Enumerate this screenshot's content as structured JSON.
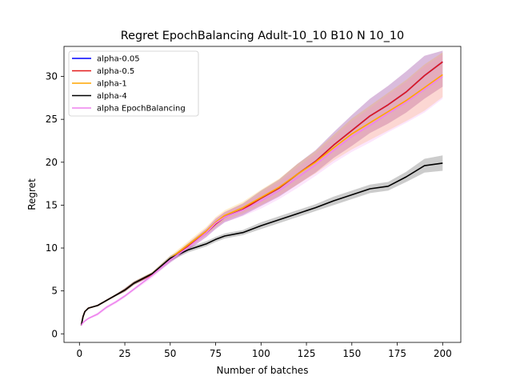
{
  "chart_data": {
    "type": "line",
    "title": "Regret EpochBalancing Adult-10_10 B10 N 10_10",
    "xlabel": "Number of batches",
    "ylabel": "Regret",
    "xlim": [
      -8.5,
      210
    ],
    "ylim": [
      -1.0,
      33.5
    ],
    "xticks": [
      0,
      25,
      50,
      75,
      100,
      125,
      150,
      175,
      200
    ],
    "yticks": [
      0,
      5,
      10,
      15,
      20,
      25,
      30
    ],
    "legend_position": "top-left",
    "grid": false,
    "series": [
      {
        "name": "alpha-0.05",
        "color": "#0000ff",
        "band_opacity": 0.15,
        "x": [
          1,
          2,
          3,
          5,
          10,
          15,
          20,
          25,
          30,
          40,
          50,
          60,
          70,
          75,
          80,
          90,
          100,
          110,
          120,
          130,
          140,
          150,
          160,
          170,
          180,
          190,
          200
        ],
        "y": [
          1.0,
          2.0,
          2.6,
          3.0,
          3.3,
          3.9,
          4.5,
          5.1,
          5.9,
          6.9,
          8.6,
          10.2,
          11.8,
          12.8,
          13.6,
          14.5,
          15.8,
          17.0,
          18.6,
          20.1,
          22.0,
          23.7,
          25.4,
          26.7,
          28.2,
          30.1,
          31.7
        ],
        "lower": [
          1.0,
          2.0,
          2.6,
          3.0,
          3.2,
          3.8,
          4.4,
          4.9,
          5.7,
          6.7,
          8.3,
          9.8,
          11.3,
          12.2,
          13.0,
          13.8,
          14.9,
          16.0,
          17.4,
          18.8,
          20.5,
          21.9,
          23.4,
          24.5,
          25.8,
          27.4,
          28.8
        ],
        "upper": [
          1.0,
          2.0,
          2.6,
          3.0,
          3.4,
          4.0,
          4.6,
          5.3,
          6.1,
          7.1,
          8.9,
          10.6,
          12.3,
          13.4,
          14.2,
          15.2,
          16.7,
          18.0,
          19.8,
          21.4,
          23.5,
          25.5,
          27.4,
          28.9,
          30.6,
          32.4,
          33.0
        ]
      },
      {
        "name": "alpha-0.5",
        "color": "#e31a1c",
        "band_opacity": 0.15,
        "x": [
          1,
          2,
          3,
          5,
          10,
          15,
          20,
          25,
          30,
          40,
          50,
          60,
          70,
          75,
          80,
          90,
          100,
          110,
          120,
          130,
          140,
          150,
          160,
          170,
          180,
          190,
          200
        ],
        "y": [
          1.0,
          2.0,
          2.6,
          3.0,
          3.3,
          3.9,
          4.5,
          5.1,
          5.9,
          6.9,
          8.6,
          10.2,
          11.8,
          12.8,
          13.6,
          14.5,
          15.8,
          17.0,
          18.6,
          20.1,
          22.0,
          23.7,
          25.4,
          26.7,
          28.2,
          30.1,
          31.7
        ],
        "lower": [
          1.0,
          2.0,
          2.6,
          3.0,
          3.2,
          3.8,
          4.4,
          4.9,
          5.7,
          6.7,
          8.3,
          9.8,
          11.3,
          12.2,
          13.0,
          13.8,
          14.9,
          16.0,
          17.4,
          18.8,
          20.5,
          21.9,
          23.4,
          24.5,
          25.8,
          27.4,
          28.8
        ],
        "upper": [
          1.0,
          2.0,
          2.6,
          3.0,
          3.4,
          4.0,
          4.6,
          5.3,
          6.1,
          7.1,
          8.9,
          10.6,
          12.3,
          13.4,
          14.2,
          15.2,
          16.7,
          18.0,
          19.8,
          21.4,
          23.5,
          25.5,
          27.4,
          28.9,
          30.6,
          32.4,
          33.0
        ]
      },
      {
        "name": "alpha-1",
        "color": "#ffa500",
        "band_opacity": 0.2,
        "x": [
          1,
          2,
          3,
          5,
          10,
          15,
          20,
          25,
          30,
          40,
          50,
          60,
          70,
          75,
          80,
          90,
          100,
          110,
          120,
          130,
          140,
          150,
          160,
          170,
          180,
          190,
          200
        ],
        "y": [
          1.0,
          2.0,
          2.6,
          3.0,
          3.3,
          3.9,
          4.5,
          5.1,
          5.9,
          7.0,
          8.8,
          10.4,
          12.0,
          13.0,
          13.8,
          14.7,
          15.9,
          17.1,
          18.6,
          20.0,
          21.7,
          23.3,
          24.6,
          25.9,
          27.2,
          28.7,
          30.2
        ],
        "lower": [
          1.0,
          2.0,
          2.6,
          3.0,
          3.2,
          3.8,
          4.4,
          4.9,
          5.7,
          6.8,
          8.5,
          10.0,
          11.5,
          12.4,
          13.2,
          14.0,
          15.0,
          16.1,
          17.4,
          18.7,
          20.2,
          21.5,
          22.6,
          23.7,
          24.8,
          26.0,
          27.6
        ],
        "upper": [
          1.0,
          2.0,
          2.6,
          3.0,
          3.4,
          4.0,
          4.6,
          5.3,
          6.1,
          7.2,
          9.1,
          10.8,
          12.5,
          13.6,
          14.4,
          15.4,
          16.8,
          18.1,
          19.8,
          21.3,
          23.2,
          25.1,
          26.6,
          28.1,
          29.6,
          31.4,
          32.8
        ]
      },
      {
        "name": "alpha-4",
        "color": "#000000",
        "band_opacity": 0.2,
        "x": [
          1,
          2,
          3,
          5,
          10,
          15,
          20,
          25,
          30,
          40,
          50,
          60,
          70,
          75,
          80,
          90,
          100,
          110,
          120,
          130,
          140,
          150,
          160,
          170,
          180,
          190,
          200
        ],
        "y": [
          1.0,
          2.0,
          2.6,
          3.0,
          3.3,
          3.9,
          4.5,
          5.1,
          5.9,
          7.0,
          8.8,
          9.8,
          10.5,
          11.0,
          11.4,
          11.8,
          12.6,
          13.3,
          14.0,
          14.7,
          15.5,
          16.2,
          16.9,
          17.2,
          18.3,
          19.6,
          19.9
        ],
        "lower": [
          1.0,
          2.0,
          2.6,
          3.0,
          3.2,
          3.8,
          4.4,
          4.9,
          5.7,
          6.8,
          8.5,
          9.5,
          10.2,
          10.7,
          11.1,
          11.5,
          12.2,
          12.9,
          13.6,
          14.3,
          15.0,
          15.7,
          16.4,
          16.7,
          17.7,
          18.8,
          19.0
        ],
        "upper": [
          1.0,
          2.0,
          2.6,
          3.0,
          3.4,
          4.0,
          4.6,
          5.3,
          6.1,
          7.2,
          9.1,
          10.1,
          10.8,
          11.3,
          11.7,
          12.1,
          13.0,
          13.7,
          14.4,
          15.1,
          16.0,
          16.7,
          17.4,
          17.7,
          18.9,
          20.4,
          20.8
        ]
      },
      {
        "name": "alpha EpochBalancing",
        "color": "#ee82ee",
        "band_opacity": 0.2,
        "x": [
          1,
          2,
          3,
          5,
          10,
          15,
          20,
          25,
          30,
          40,
          50,
          60,
          70,
          75,
          80,
          90,
          100,
          110,
          120,
          130,
          140,
          150,
          160,
          170,
          180,
          190,
          200
        ],
        "y": [
          1.0,
          1.3,
          1.5,
          1.8,
          2.3,
          3.1,
          3.7,
          4.4,
          5.2,
          6.8,
          8.6,
          10.1,
          11.8,
          12.9,
          13.6,
          14.4,
          15.5,
          16.7,
          18.2,
          19.7,
          21.4,
          23.0,
          24.3,
          25.7,
          27.0,
          28.5,
          30.0
        ],
        "lower": [
          1.0,
          1.2,
          1.4,
          1.7,
          2.1,
          2.9,
          3.5,
          4.2,
          5.0,
          6.5,
          8.3,
          9.7,
          11.3,
          12.3,
          13.0,
          13.7,
          14.6,
          15.7,
          17.0,
          18.4,
          19.9,
          21.2,
          22.3,
          23.5,
          24.6,
          25.8,
          27.4
        ],
        "upper": [
          1.0,
          1.4,
          1.6,
          1.9,
          2.5,
          3.3,
          3.9,
          4.6,
          5.4,
          7.1,
          8.9,
          10.5,
          12.3,
          13.5,
          14.2,
          15.1,
          16.4,
          17.7,
          19.4,
          21.0,
          22.9,
          24.8,
          26.3,
          27.9,
          29.4,
          31.2,
          32.6
        ]
      }
    ]
  }
}
